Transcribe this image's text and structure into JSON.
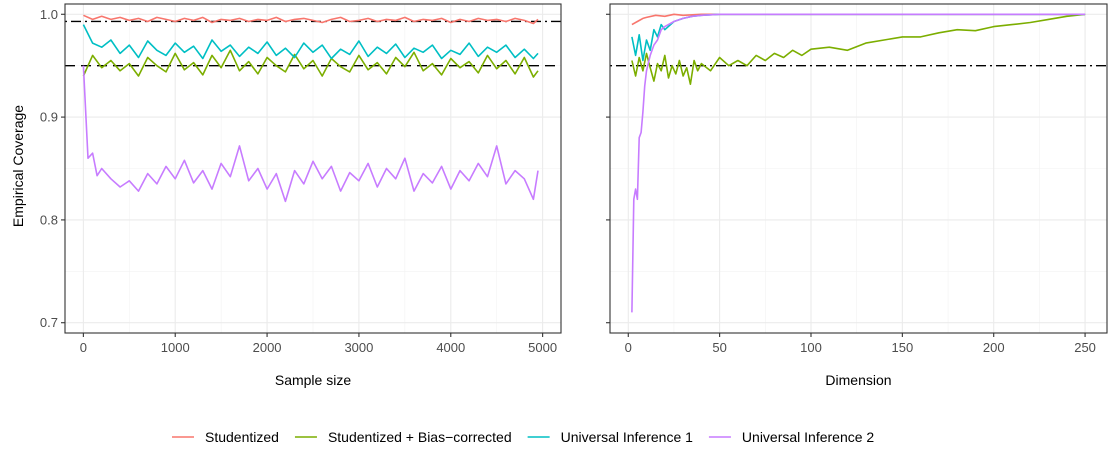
{
  "chart_data": {
    "type": "line",
    "ylabel": "Empirical Coverage",
    "ylim": [
      0.69,
      1.01
    ],
    "yticks": [
      "0.7",
      "0.8",
      "0.9",
      "1.0"
    ],
    "grid": true,
    "legend_position": "bottom",
    "legend": [
      {
        "name": "Studentized",
        "color": "#F8766D"
      },
      {
        "name": "Studentized + Bias−corrected",
        "color": "#7CAE00"
      },
      {
        "name": "Universal Inference 1",
        "color": "#00BFC4"
      },
      {
        "name": "Universal Inference 2",
        "color": "#C77CFF"
      }
    ],
    "panels": [
      {
        "xlabel": "Sample size",
        "xlim": [
          -200,
          5200
        ],
        "xticks": [
          "0",
          "1000",
          "2000",
          "3000",
          "4000",
          "5000"
        ],
        "reference_lines": [
          {
            "y": 0.993,
            "style": "dotdash"
          },
          {
            "y": 0.95,
            "style": "dashed"
          }
        ],
        "series": [
          {
            "name": "Studentized",
            "color": "#F8766D",
            "x": [
              0,
              100,
              200,
              300,
              400,
              500,
              600,
              700,
              800,
              900,
              1000,
              1100,
              1200,
              1300,
              1400,
              1500,
              1600,
              1700,
              1800,
              1900,
              2000,
              2100,
              2200,
              2300,
              2400,
              2500,
              2600,
              2700,
              2800,
              2900,
              3000,
              3100,
              3200,
              3300,
              3400,
              3500,
              3600,
              3700,
              3800,
              3900,
              4000,
              4100,
              4200,
              4300,
              4400,
              4500,
              4600,
              4700,
              4800,
              4900,
              4950
            ],
            "y": [
              0.999,
              0.995,
              0.998,
              0.995,
              0.997,
              0.994,
              0.996,
              0.993,
              0.997,
              0.995,
              0.993,
              0.996,
              0.994,
              0.997,
              0.992,
              0.995,
              0.994,
              0.996,
              0.993,
              0.995,
              0.994,
              0.997,
              0.993,
              0.995,
              0.996,
              0.994,
              0.992,
              0.995,
              0.997,
              0.993,
              0.994,
              0.996,
              0.993,
              0.995,
              0.994,
              0.997,
              0.993,
              0.995,
              0.994,
              0.996,
              0.992,
              0.995,
              0.993,
              0.996,
              0.994,
              0.995,
              0.993,
              0.996,
              0.994,
              0.991,
              0.995
            ]
          },
          {
            "name": "Studentized + Bias−corrected",
            "color": "#7CAE00",
            "x": [
              0,
              100,
              200,
              300,
              400,
              500,
              600,
              700,
              800,
              900,
              1000,
              1100,
              1200,
              1300,
              1400,
              1500,
              1600,
              1700,
              1800,
              1900,
              2000,
              2100,
              2200,
              2300,
              2400,
              2500,
              2600,
              2700,
              2800,
              2900,
              3000,
              3100,
              3200,
              3300,
              3400,
              3500,
              3600,
              3700,
              3800,
              3900,
              4000,
              4100,
              4200,
              4300,
              4400,
              4500,
              4600,
              4700,
              4800,
              4900,
              4950
            ],
            "y": [
              0.94,
              0.96,
              0.948,
              0.955,
              0.945,
              0.952,
              0.94,
              0.958,
              0.95,
              0.944,
              0.962,
              0.946,
              0.953,
              0.941,
              0.96,
              0.948,
              0.965,
              0.945,
              0.954,
              0.942,
              0.958,
              0.95,
              0.944,
              0.961,
              0.947,
              0.955,
              0.94,
              0.957,
              0.949,
              0.944,
              0.96,
              0.946,
              0.953,
              0.942,
              0.958,
              0.949,
              0.963,
              0.945,
              0.952,
              0.941,
              0.957,
              0.948,
              0.954,
              0.943,
              0.96,
              0.947,
              0.955,
              0.942,
              0.958,
              0.939,
              0.945
            ]
          },
          {
            "name": "Universal Inference 1",
            "color": "#00BFC4",
            "x": [
              0,
              100,
              200,
              300,
              400,
              500,
              600,
              700,
              800,
              900,
              1000,
              1100,
              1200,
              1300,
              1400,
              1500,
              1600,
              1700,
              1800,
              1900,
              2000,
              2100,
              2200,
              2300,
              2400,
              2500,
              2600,
              2700,
              2800,
              2900,
              3000,
              3100,
              3200,
              3300,
              3400,
              3500,
              3600,
              3700,
              3800,
              3900,
              4000,
              4100,
              4200,
              4300,
              4400,
              4500,
              4600,
              4700,
              4800,
              4900,
              4950
            ],
            "y": [
              0.99,
              0.972,
              0.968,
              0.975,
              0.962,
              0.97,
              0.958,
              0.974,
              0.965,
              0.96,
              0.972,
              0.963,
              0.969,
              0.957,
              0.975,
              0.964,
              0.97,
              0.959,
              0.968,
              0.962,
              0.973,
              0.96,
              0.967,
              0.958,
              0.972,
              0.963,
              0.97,
              0.957,
              0.966,
              0.961,
              0.974,
              0.959,
              0.968,
              0.962,
              0.971,
              0.958,
              0.967,
              0.963,
              0.97,
              0.957,
              0.965,
              0.961,
              0.972,
              0.959,
              0.968,
              0.963,
              0.97,
              0.958,
              0.966,
              0.957,
              0.962
            ]
          },
          {
            "name": "Universal Inference 2",
            "color": "#C77CFF",
            "x": [
              0,
              50,
              100,
              150,
              200,
              300,
              400,
              500,
              600,
              700,
              800,
              900,
              1000,
              1100,
              1200,
              1300,
              1400,
              1500,
              1600,
              1700,
              1800,
              1900,
              2000,
              2100,
              2200,
              2300,
              2400,
              2500,
              2600,
              2700,
              2800,
              2900,
              3000,
              3100,
              3200,
              3300,
              3400,
              3500,
              3600,
              3700,
              3800,
              3900,
              4000,
              4100,
              4200,
              4300,
              4400,
              4500,
              4600,
              4700,
              4800,
              4900,
              4950
            ],
            "y": [
              0.95,
              0.86,
              0.865,
              0.843,
              0.85,
              0.84,
              0.832,
              0.838,
              0.828,
              0.845,
              0.835,
              0.852,
              0.84,
              0.858,
              0.836,
              0.848,
              0.83,
              0.855,
              0.842,
              0.872,
              0.838,
              0.85,
              0.83,
              0.845,
              0.818,
              0.848,
              0.835,
              0.857,
              0.84,
              0.852,
              0.828,
              0.846,
              0.838,
              0.855,
              0.832,
              0.85,
              0.84,
              0.86,
              0.828,
              0.845,
              0.836,
              0.852,
              0.83,
              0.848,
              0.838,
              0.855,
              0.842,
              0.872,
              0.835,
              0.848,
              0.84,
              0.82,
              0.848
            ]
          }
        ]
      },
      {
        "xlabel": "Dimension",
        "xlim": [
          -10,
          262
        ],
        "xticks": [
          "0",
          "50",
          "100",
          "150",
          "200",
          "250"
        ],
        "reference_lines": [
          {
            "y": 0.95,
            "style": "dotdash"
          }
        ],
        "series": [
          {
            "name": "Studentized",
            "color": "#F8766D",
            "x": [
              2,
              5,
              8,
              10,
              15,
              20,
              25,
              30,
              40,
              50,
              100,
              150,
              200,
              250
            ],
            "y": [
              0.99,
              0.993,
              0.996,
              0.997,
              0.999,
              0.998,
              1.0,
              0.999,
              1.0,
              1.0,
              1.0,
              1.0,
              1.0,
              1.0
            ]
          },
          {
            "name": "Studentized + Bias−corrected",
            "color": "#7CAE00",
            "x": [
              2,
              4,
              6,
              8,
              10,
              12,
              14,
              16,
              18,
              20,
              22,
              24,
              26,
              28,
              30,
              32,
              34,
              36,
              38,
              40,
              45,
              50,
              55,
              60,
              65,
              70,
              75,
              80,
              85,
              90,
              95,
              100,
              110,
              120,
              130,
              140,
              150,
              160,
              170,
              180,
              190,
              200,
              210,
              220,
              230,
              240,
              250
            ],
            "y": [
              0.955,
              0.94,
              0.958,
              0.945,
              0.962,
              0.948,
              0.935,
              0.952,
              0.945,
              0.96,
              0.938,
              0.95,
              0.942,
              0.955,
              0.94,
              0.948,
              0.932,
              0.955,
              0.945,
              0.952,
              0.945,
              0.958,
              0.95,
              0.955,
              0.95,
              0.96,
              0.955,
              0.962,
              0.958,
              0.965,
              0.96,
              0.966,
              0.968,
              0.965,
              0.972,
              0.975,
              0.978,
              0.978,
              0.982,
              0.985,
              0.984,
              0.988,
              0.99,
              0.992,
              0.995,
              0.998,
              1.0
            ]
          },
          {
            "name": "Universal Inference 1",
            "color": "#00BFC4",
            "x": [
              2,
              4,
              6,
              8,
              10,
              12,
              14,
              16,
              18,
              20,
              25,
              30,
              35,
              40,
              50,
              60,
              80,
              100,
              150,
              200,
              250
            ],
            "y": [
              0.978,
              0.96,
              0.98,
              0.955,
              0.975,
              0.965,
              0.985,
              0.978,
              0.99,
              0.985,
              0.993,
              0.996,
              0.998,
              0.999,
              1.0,
              1.0,
              1.0,
              1.0,
              1.0,
              1.0,
              1.0
            ]
          },
          {
            "name": "Universal Inference 2",
            "color": "#C77CFF",
            "x": [
              2,
              3,
              4,
              5,
              6,
              7,
              8,
              9,
              10,
              12,
              14,
              16,
              18,
              20,
              25,
              30,
              35,
              40,
              50,
              60,
              80,
              100,
              150,
              200,
              250
            ],
            "y": [
              0.71,
              0.82,
              0.83,
              0.82,
              0.88,
              0.885,
              0.905,
              0.93,
              0.945,
              0.96,
              0.97,
              0.975,
              0.985,
              0.988,
              0.993,
              0.996,
              0.998,
              0.999,
              1.0,
              1.0,
              1.0,
              1.0,
              1.0,
              1.0,
              1.0
            ]
          }
        ]
      }
    ]
  }
}
